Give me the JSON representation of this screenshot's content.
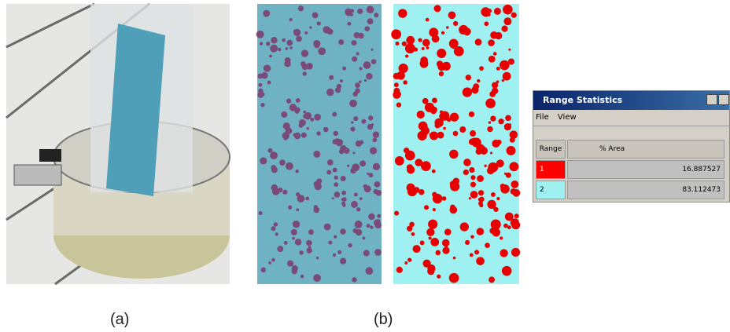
{
  "figure": {
    "labels": [
      "(a)",
      "(b)"
    ]
  },
  "window": {
    "title": "Range Statistics",
    "menu": [
      "File",
      "View"
    ],
    "table": {
      "headers": [
        "Range",
        "% Area"
      ],
      "rows": [
        [
          "1",
          "16.887527"
        ],
        [
          "2",
          "83.112473"
        ]
      ]
    }
  }
}
